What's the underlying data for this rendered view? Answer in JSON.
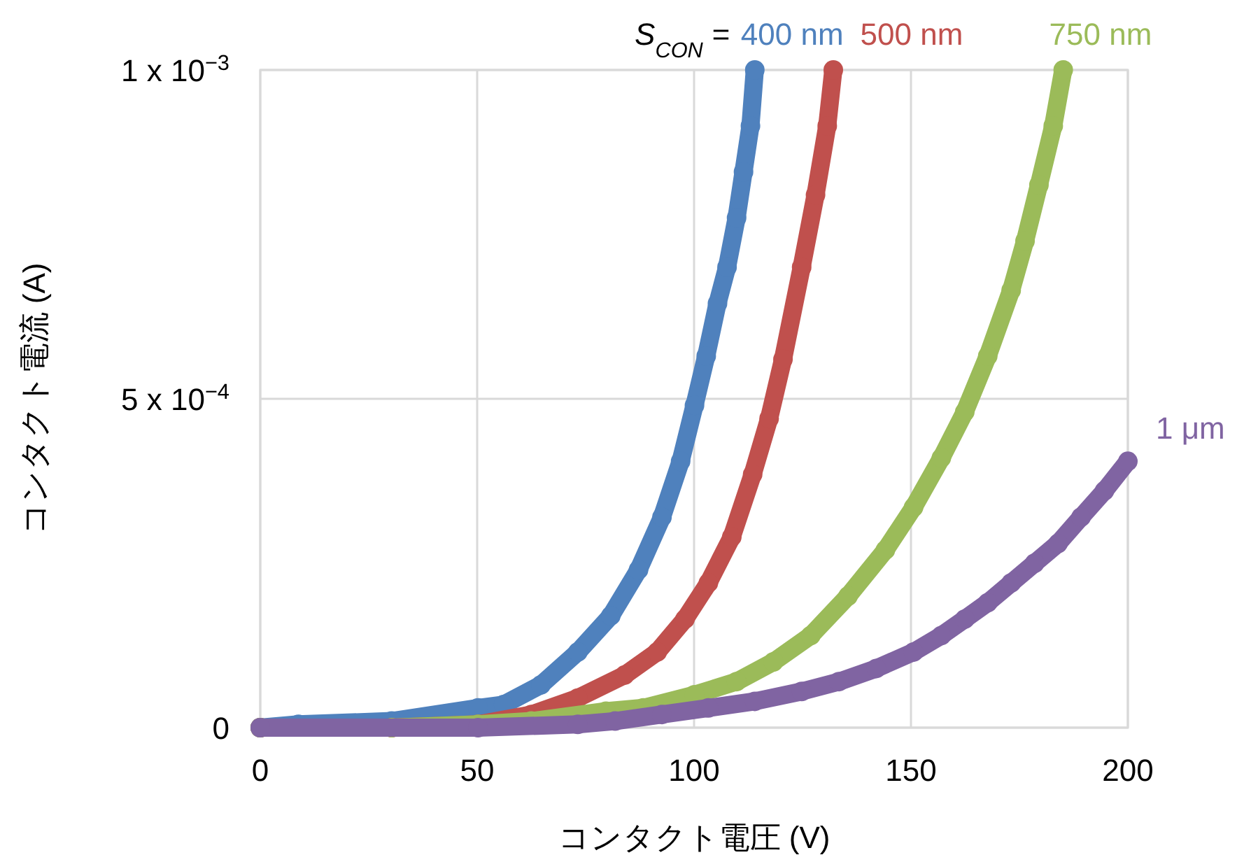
{
  "chart_data": {
    "type": "line",
    "xlabel": "コンタクト電圧 (V)",
    "ylabel": "コンタクト電流 (A)",
    "annotations": [
      "S$_{CON}$ ="
    ],
    "xlim": [
      0,
      200
    ],
    "ylim": [
      0,
      0.001
    ],
    "xticks": [
      0,
      50,
      100,
      150,
      200
    ],
    "yticks": [
      0,
      {
        "value": 0.0005,
        "label": "5 x 10$^{−4}$"
      },
      {
        "value": 0.001,
        "label": "1 x 10$^{−3}$"
      }
    ],
    "grid": true,
    "marker": "circle",
    "line_style": "solid",
    "series": [
      {
        "name": "400 nm",
        "color": "#4f81bd",
        "x": [
          0,
          8.8,
          30.3,
          50.2,
          56.1,
          64.7,
          73.2,
          80.8,
          87.2,
          92.6,
          96.9,
          100.1,
          102.8,
          105.4,
          107.6,
          109.8,
          111.4,
          113,
          114
        ],
        "values": [
          0,
          5e-06,
          1e-05,
          3e-05,
          3.5e-05,
          6.5e-05,
          0.000115,
          0.00017,
          0.00024,
          0.00032,
          0.000405,
          0.00049,
          0.000565,
          0.000645,
          0.0007,
          0.000775,
          0.000845,
          0.000915,
          0.001
        ]
      },
      {
        "name": "500 nm",
        "color": "#c0504d",
        "x": [
          0,
          30.3,
          50.2,
          62.5,
          73.2,
          84,
          91.5,
          97.9,
          103.3,
          108.7,
          113.5,
          117.3,
          120.5,
          124.8,
          128,
          130.7,
          132.1
        ],
        "values": [
          0,
          0,
          5e-06,
          2e-05,
          4.5e-05,
          8e-05,
          0.000115,
          0.000165,
          0.00022,
          0.00029,
          0.000385,
          0.00047,
          0.00056,
          0.0007,
          0.00081,
          0.000915,
          0.001
        ]
      },
      {
        "name": "750 nm",
        "color": "#9bbb59",
        "x": [
          0,
          30.3,
          50.2,
          62.5,
          79.7,
          88.3,
          100.1,
          109.8,
          118.3,
          126.9,
          135.5,
          144.1,
          150.6,
          157,
          162.4,
          167.7,
          173.1,
          176.3,
          179.5,
          182.8,
          185.1
        ],
        "values": [
          0,
          0,
          5e-06,
          1e-05,
          2.5e-05,
          3e-05,
          5e-05,
          7e-05,
          0.0001,
          0.00014,
          0.0002,
          0.00027,
          0.000335,
          0.00041,
          0.00048,
          0.000565,
          0.000665,
          0.00074,
          0.000825,
          0.000915,
          0.001
        ]
      },
      {
        "name": "1 μm",
        "color": "#8064a2",
        "x": [
          0,
          50.2,
          73.2,
          81.8,
          92.6,
          103.3,
          114,
          124.8,
          133.4,
          142,
          150.6,
          157,
          162.4,
          167.7,
          173.1,
          178.5,
          183.9,
          189.2,
          194.6,
          200
        ],
        "values": [
          0,
          0,
          5e-06,
          1e-05,
          2e-05,
          3e-05,
          4e-05,
          5.5e-05,
          7e-05,
          9e-05,
          0.000115,
          0.00014,
          0.000165,
          0.00019,
          0.00022,
          0.00025,
          0.00028,
          0.00032,
          0.00036,
          0.000405
        ]
      }
    ]
  }
}
